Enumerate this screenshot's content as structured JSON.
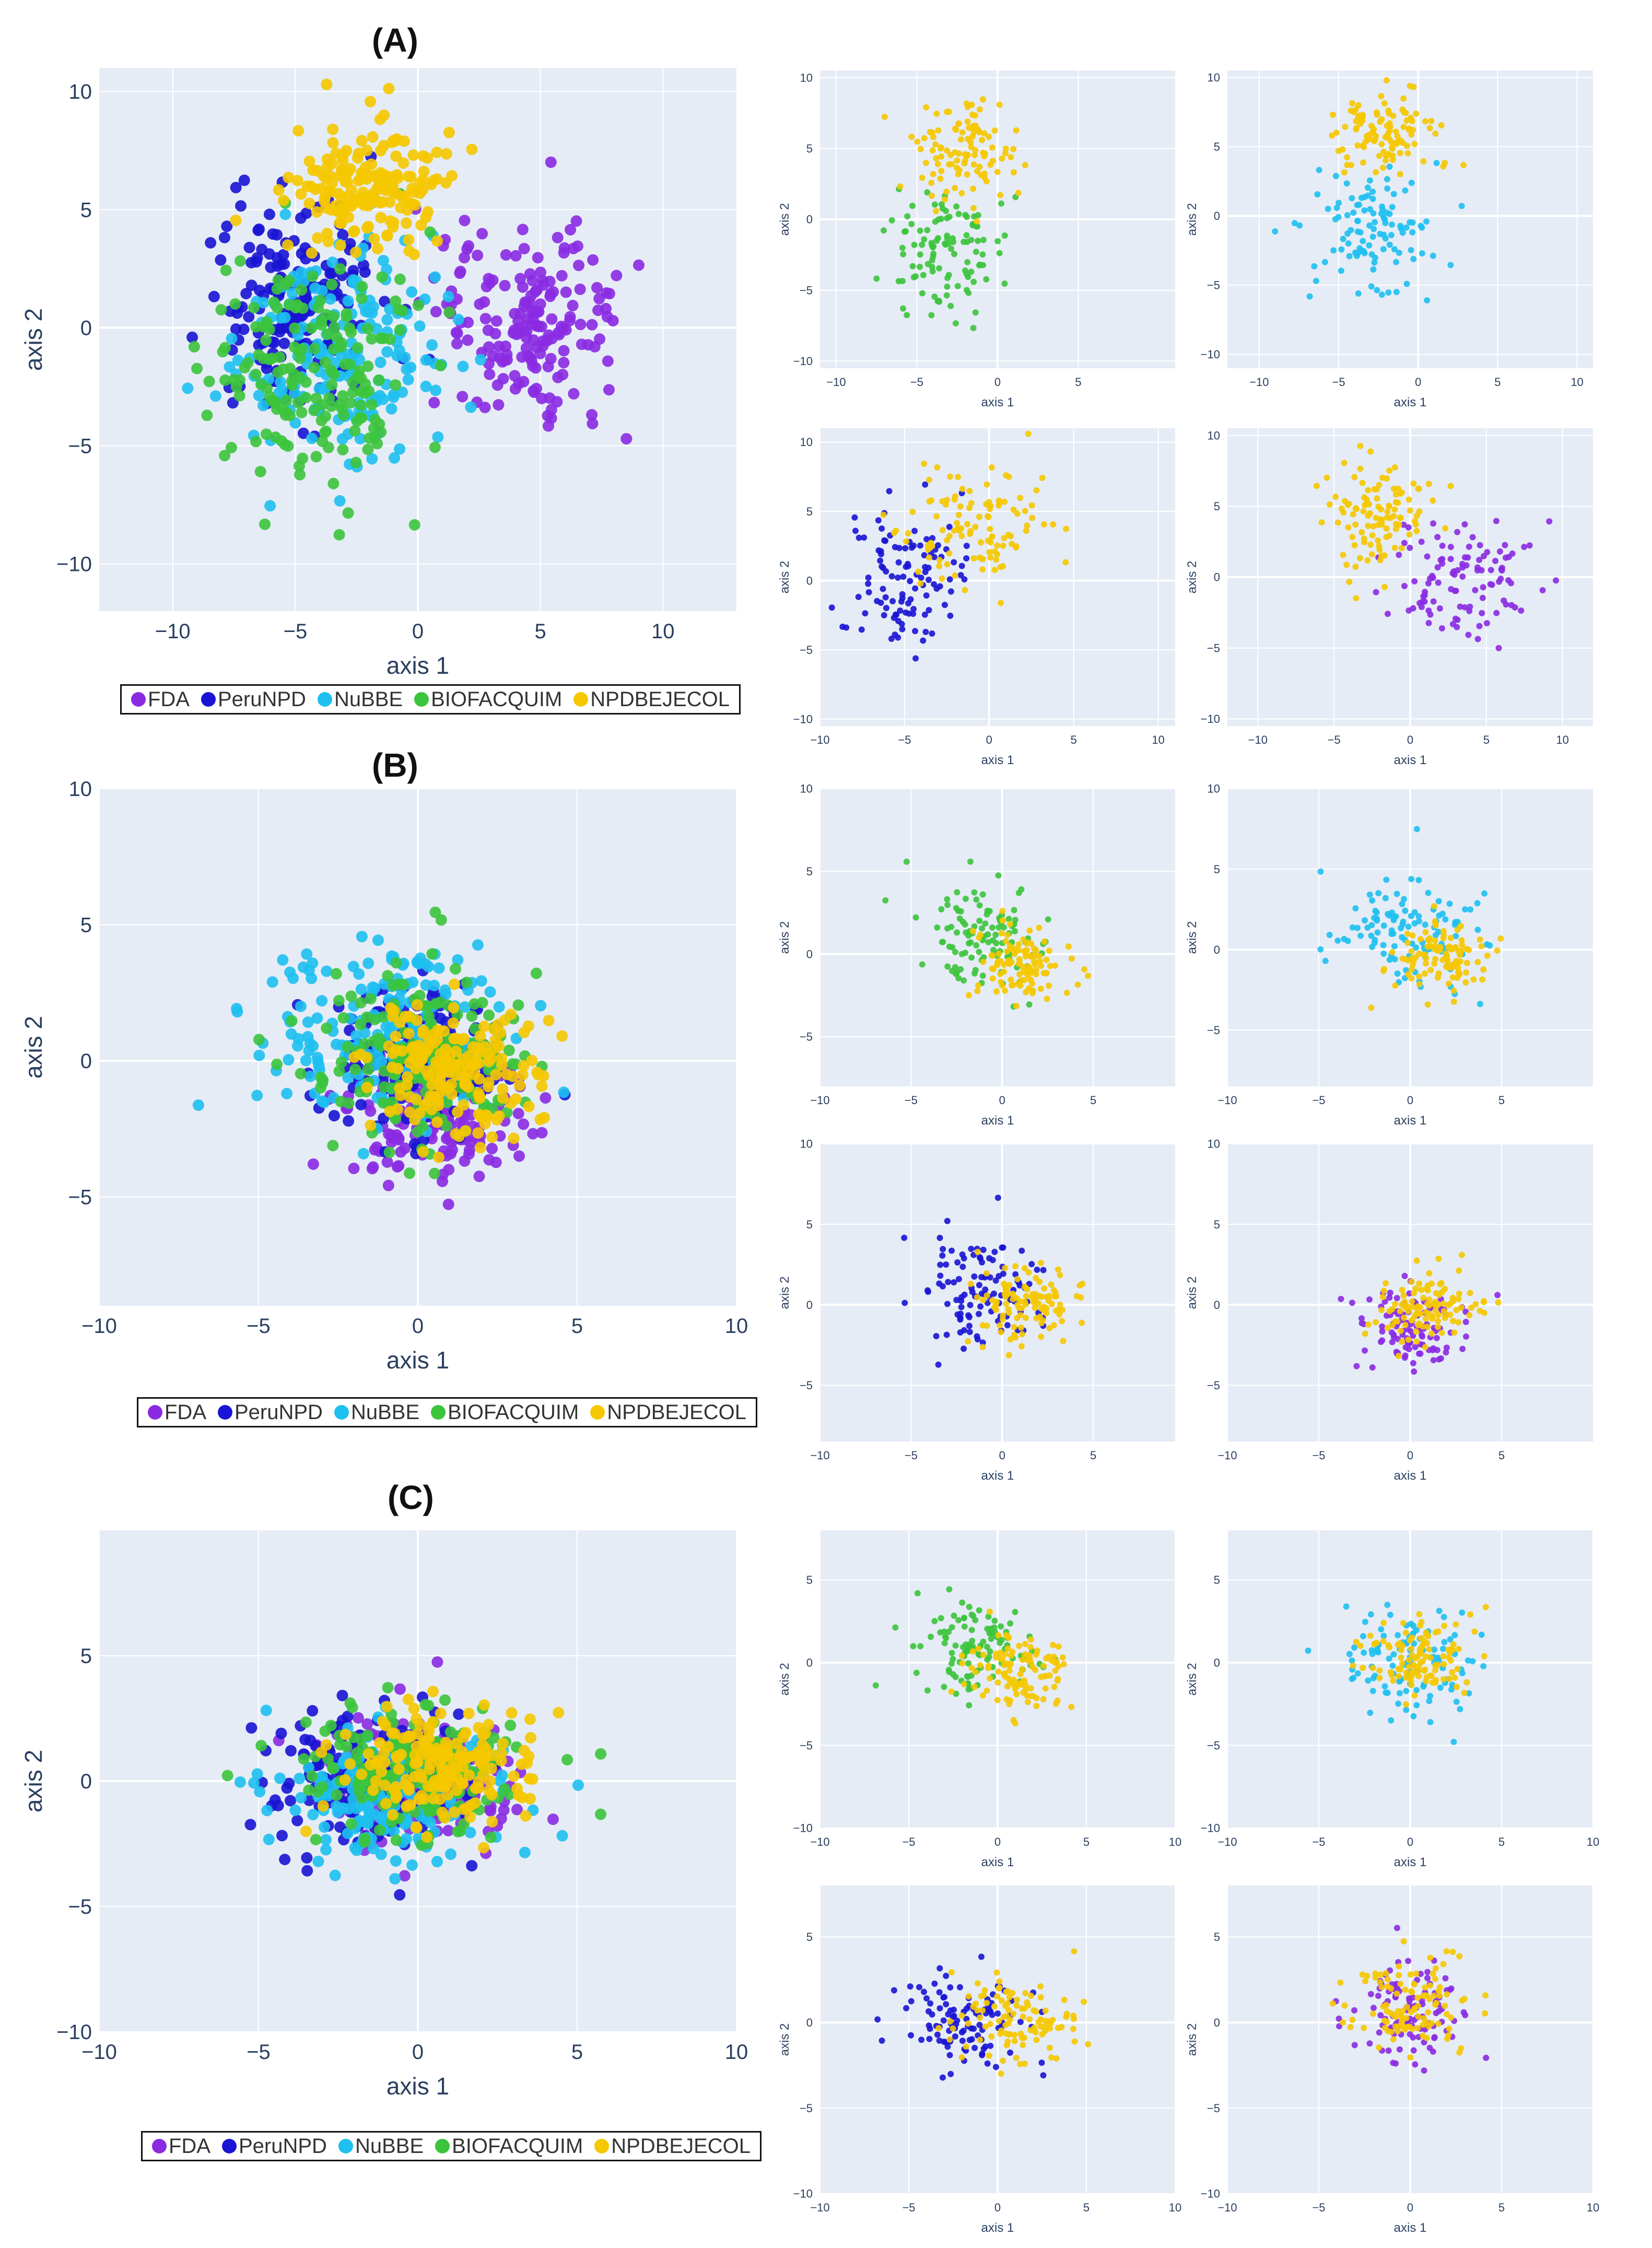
{
  "figure": {
    "panels": [
      {
        "id": "A",
        "label": "(A)"
      },
      {
        "id": "B",
        "label": "(B)"
      },
      {
        "id": "C",
        "label": "(C)"
      }
    ],
    "legend": [
      {
        "name": "FDA",
        "color": "#8a2be2"
      },
      {
        "name": "PeruNPD",
        "color": "#1a14d4"
      },
      {
        "name": "NuBBE",
        "color": "#1ec0ef"
      },
      {
        "name": "BIOFACQUIM",
        "color": "#3cc43c"
      },
      {
        "name": "NPDBEJECOL",
        "color": "#f5c800"
      }
    ]
  },
  "chart_data": [
    {
      "type": "scatter",
      "panel": "A",
      "role": "main",
      "title": "(A)",
      "xlabel": "axis 1",
      "ylabel": "axis 2",
      "xlim": [
        -13,
        13
      ],
      "ylim": [
        -12,
        11
      ],
      "xticks": [
        -10,
        -5,
        0,
        5,
        10
      ],
      "yticks": [
        -10,
        -5,
        0,
        5,
        10
      ],
      "series": [
        {
          "name": "FDA",
          "center": [
            4.5,
            0
          ],
          "spread": [
            3.5,
            4
          ]
        },
        {
          "name": "PeruNPD",
          "center": [
            -5,
            1
          ],
          "spread": [
            3,
            4
          ]
        },
        {
          "name": "NuBBE",
          "center": [
            -3,
            -1
          ],
          "spread": [
            4,
            5
          ]
        },
        {
          "name": "BIOFACQUIM",
          "center": [
            -4,
            -2
          ],
          "spread": [
            3.5,
            4.5
          ]
        },
        {
          "name": "NPDBEJECOL",
          "center": [
            -2,
            6
          ],
          "spread": [
            3,
            2.5
          ]
        }
      ]
    },
    {
      "type": "scatter",
      "panel": "A",
      "role": "sub",
      "xlabel": "axis 1",
      "ylabel": "axis 2",
      "xlim": [
        -11,
        11
      ],
      "ylim": [
        -10.5,
        10.5
      ],
      "xticks": [
        -10,
        -5,
        0,
        5
      ],
      "yticks": [
        -10,
        -5,
        0,
        5,
        10
      ],
      "series": [
        {
          "name": "BIOFACQUIM",
          "center": [
            -3,
            -2
          ],
          "spread": [
            3,
            4
          ]
        },
        {
          "name": "NPDBEJECOL",
          "center": [
            -2,
            5
          ],
          "spread": [
            3,
            3
          ]
        }
      ]
    },
    {
      "type": "scatter",
      "panel": "A",
      "role": "sub",
      "xlabel": "axis 1",
      "ylabel": "axis 2",
      "xlim": [
        -12,
        11
      ],
      "ylim": [
        -11,
        10.5
      ],
      "xticks": [
        -10,
        -5,
        0,
        5,
        10
      ],
      "yticks": [
        -10,
        -5,
        0,
        5,
        10
      ],
      "series": [
        {
          "name": "NuBBE",
          "center": [
            -3,
            -1
          ],
          "spread": [
            3.5,
            4.5
          ]
        },
        {
          "name": "NPDBEJECOL",
          "center": [
            -2,
            6
          ],
          "spread": [
            3,
            2.5
          ]
        }
      ]
    },
    {
      "type": "scatter",
      "panel": "A",
      "role": "sub",
      "xlabel": "axis 1",
      "ylabel": "axis 2",
      "xlim": [
        -10,
        11
      ],
      "ylim": [
        -10.5,
        11
      ],
      "xticks": [
        -10,
        -5,
        0,
        5,
        10
      ],
      "yticks": [
        -10,
        -5,
        0,
        5,
        10
      ],
      "series": [
        {
          "name": "PeruNPD",
          "center": [
            -5,
            0
          ],
          "spread": [
            3.5,
            5
          ]
        },
        {
          "name": "NPDBEJECOL",
          "center": [
            -1,
            4
          ],
          "spread": [
            3.5,
            4
          ]
        }
      ]
    },
    {
      "type": "scatter",
      "panel": "A",
      "role": "sub",
      "xlabel": "axis 1",
      "ylabel": "axis 2",
      "xlim": [
        -12,
        12
      ],
      "ylim": [
        -10.5,
        10.5
      ],
      "xticks": [
        -10,
        -5,
        0,
        5,
        10
      ],
      "yticks": [
        -10,
        -5,
        0,
        5,
        10
      ],
      "series": [
        {
          "name": "FDA",
          "center": [
            3,
            0
          ],
          "spread": [
            4,
            4
          ]
        },
        {
          "name": "NPDBEJECOL",
          "center": [
            -2,
            4
          ],
          "spread": [
            3,
            3.5
          ]
        }
      ]
    },
    {
      "type": "scatter",
      "panel": "B",
      "role": "main",
      "title": "(B)",
      "xlabel": "axis 1",
      "ylabel": "axis 2",
      "xlim": [
        -10,
        10
      ],
      "ylim": [
        -9,
        10
      ],
      "xticks": [
        -10,
        -5,
        0,
        5,
        10
      ],
      "yticks": [
        -5,
        0,
        5,
        10
      ],
      "series": [
        {
          "name": "FDA",
          "center": [
            0.5,
            -2
          ],
          "spread": [
            2.5,
            2.2
          ]
        },
        {
          "name": "PeruNPD",
          "center": [
            0,
            0
          ],
          "spread": [
            2.5,
            2.5
          ]
        },
        {
          "name": "NuBBE",
          "center": [
            -1,
            1
          ],
          "spread": [
            3.5,
            3
          ]
        },
        {
          "name": "BIOFACQUIM",
          "center": [
            0,
            0
          ],
          "spread": [
            3,
            2.8
          ]
        },
        {
          "name": "NPDBEJECOL",
          "center": [
            1,
            -0.5
          ],
          "spread": [
            2.5,
            2
          ]
        }
      ]
    },
    {
      "type": "scatter",
      "panel": "B",
      "role": "sub",
      "xlabel": "axis 1",
      "ylabel": "axis 2",
      "xlim": [
        -10,
        9.5
      ],
      "ylim": [
        -8,
        10
      ],
      "xticks": [
        -10,
        -5,
        0,
        5
      ],
      "yticks": [
        -5,
        0,
        5,
        10
      ],
      "series": [
        {
          "name": "BIOFACQUIM",
          "center": [
            -1,
            1
          ],
          "spread": [
            3,
            2.8
          ]
        },
        {
          "name": "NPDBEJECOL",
          "center": [
            1,
            -0.5
          ],
          "spread": [
            2.5,
            2
          ]
        }
      ]
    },
    {
      "type": "scatter",
      "panel": "B",
      "role": "sub",
      "xlabel": "axis 1",
      "ylabel": "axis 2",
      "xlim": [
        -10,
        10
      ],
      "ylim": [
        -8.5,
        10
      ],
      "xticks": [
        -10,
        -5,
        0,
        5
      ],
      "yticks": [
        -5,
        0,
        5,
        10
      ],
      "series": [
        {
          "name": "NuBBE",
          "center": [
            0,
            1
          ],
          "spread": [
            3.5,
            3
          ]
        },
        {
          "name": "NPDBEJECOL",
          "center": [
            1.5,
            -0.5
          ],
          "spread": [
            2.5,
            2
          ]
        }
      ]
    },
    {
      "type": "scatter",
      "panel": "B",
      "role": "sub",
      "xlabel": "axis 1",
      "ylabel": "axis 2",
      "xlim": [
        -10,
        9.5
      ],
      "ylim": [
        -8.5,
        10
      ],
      "xticks": [
        -10,
        -5,
        0,
        5
      ],
      "yticks": [
        -5,
        0,
        5,
        10
      ],
      "series": [
        {
          "name": "PeruNPD",
          "center": [
            -1,
            1
          ],
          "spread": [
            3,
            3
          ]
        },
        {
          "name": "NPDBEJECOL",
          "center": [
            1.5,
            0
          ],
          "spread": [
            2.5,
            2
          ]
        }
      ]
    },
    {
      "type": "scatter",
      "panel": "B",
      "role": "sub",
      "xlabel": "axis 1",
      "ylabel": "axis 2",
      "xlim": [
        -10,
        10
      ],
      "ylim": [
        -8.5,
        10
      ],
      "xticks": [
        -10,
        -5,
        0,
        5
      ],
      "yticks": [
        -5,
        0,
        5,
        10
      ],
      "series": [
        {
          "name": "FDA",
          "center": [
            0,
            -1.5
          ],
          "spread": [
            2.5,
            2.2
          ]
        },
        {
          "name": "NPDBEJECOL",
          "center": [
            1,
            0
          ],
          "spread": [
            2.5,
            2
          ]
        }
      ]
    },
    {
      "type": "scatter",
      "panel": "C",
      "role": "main",
      "title": "(C)",
      "xlabel": "axis 1",
      "ylabel": "axis 2",
      "xlim": [
        -10,
        10
      ],
      "ylim": [
        -10,
        10
      ],
      "xticks": [
        -10,
        -5,
        0,
        5,
        10
      ],
      "yticks": [
        -10,
        -5,
        0,
        5
      ],
      "series": [
        {
          "name": "FDA",
          "center": [
            0,
            0
          ],
          "spread": [
            2.8,
            2.5
          ]
        },
        {
          "name": "PeruNPD",
          "center": [
            -1,
            0
          ],
          "spread": [
            3,
            2.5
          ]
        },
        {
          "name": "NuBBE",
          "center": [
            -1,
            -0.5
          ],
          "spread": [
            3.5,
            2.8
          ]
        },
        {
          "name": "BIOFACQUIM",
          "center": [
            0,
            0.5
          ],
          "spread": [
            3,
            2.5
          ]
        },
        {
          "name": "NPDBEJECOL",
          "center": [
            0.5,
            0.5
          ],
          "spread": [
            2.5,
            2.2
          ]
        }
      ]
    },
    {
      "type": "scatter",
      "panel": "C",
      "role": "sub",
      "xlabel": "axis 1",
      "ylabel": "axis 2",
      "xlim": [
        -10,
        10
      ],
      "ylim": [
        -10,
        8
      ],
      "xticks": [
        -10,
        -5,
        0,
        5,
        10
      ],
      "yticks": [
        -10,
        -5,
        0,
        5
      ],
      "series": [
        {
          "name": "BIOFACQUIM",
          "center": [
            -1,
            1
          ],
          "spread": [
            3,
            2.5
          ]
        },
        {
          "name": "NPDBEJECOL",
          "center": [
            1,
            -0.5
          ],
          "spread": [
            2.5,
            2.5
          ]
        }
      ]
    },
    {
      "type": "scatter",
      "panel": "C",
      "role": "sub",
      "xlabel": "axis 1",
      "ylabel": "axis 2",
      "xlim": [
        -10,
        10
      ],
      "ylim": [
        -10,
        8
      ],
      "xticks": [
        -10,
        -5,
        0,
        5,
        10
      ],
      "yticks": [
        -10,
        -5,
        0,
        5
      ],
      "series": [
        {
          "name": "NuBBE",
          "center": [
            0,
            0
          ],
          "spread": [
            3.5,
            2.8
          ]
        },
        {
          "name": "NPDBEJECOL",
          "center": [
            0.5,
            0.5
          ],
          "spread": [
            2.5,
            2.2
          ]
        }
      ]
    },
    {
      "type": "scatter",
      "panel": "C",
      "role": "sub",
      "xlabel": "axis 1",
      "ylabel": "axis 2",
      "xlim": [
        -10,
        10
      ],
      "ylim": [
        -10,
        8
      ],
      "xticks": [
        -10,
        -5,
        0,
        5,
        10
      ],
      "yticks": [
        -10,
        -5,
        0,
        5
      ],
      "series": [
        {
          "name": "PeruNPD",
          "center": [
            -2,
            0
          ],
          "spread": [
            3,
            2.5
          ]
        },
        {
          "name": "NPDBEJECOL",
          "center": [
            1,
            0
          ],
          "spread": [
            3,
            2.5
          ]
        }
      ]
    },
    {
      "type": "scatter",
      "panel": "C",
      "role": "sub",
      "xlabel": "axis 1",
      "ylabel": "axis 2",
      "xlim": [
        -10,
        10
      ],
      "ylim": [
        -10,
        8
      ],
      "xticks": [
        -10,
        -5,
        0,
        5,
        10
      ],
      "yticks": [
        -10,
        -5,
        0,
        5
      ],
      "series": [
        {
          "name": "FDA",
          "center": [
            0,
            0.5
          ],
          "spread": [
            2.5,
            2.5
          ]
        },
        {
          "name": "NPDBEJECOL",
          "center": [
            0,
            1
          ],
          "spread": [
            3,
            2.5
          ]
        }
      ]
    }
  ]
}
